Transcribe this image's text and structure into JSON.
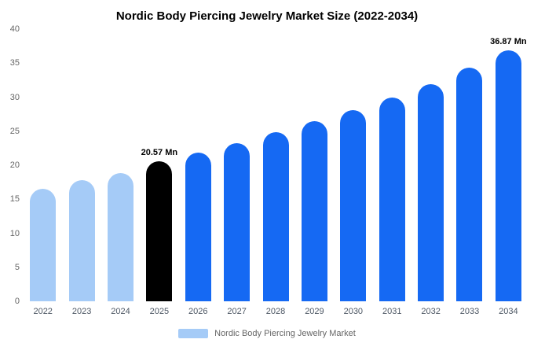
{
  "title": "Nordic Body Piercing Jewelry Market Size (2022-2034)",
  "chart_data": {
    "type": "bar",
    "title": "Nordic Body Piercing Jewelry Market Size (2022-2034)",
    "categories": [
      "2022",
      "2023",
      "2024",
      "2025",
      "2026",
      "2027",
      "2028",
      "2029",
      "2030",
      "2031",
      "2032",
      "2033",
      "2034"
    ],
    "values": [
      16.5,
      17.8,
      18.9,
      20.57,
      21.85,
      23.2,
      24.8,
      26.5,
      28.1,
      30.0,
      31.9,
      34.3,
      36.87
    ],
    "bar_colors": [
      "light",
      "light",
      "light",
      "black",
      "blue",
      "blue",
      "blue",
      "blue",
      "blue",
      "blue",
      "blue",
      "blue",
      "blue"
    ],
    "colors": {
      "light": "#a5cbf7",
      "blue": "#1569f3",
      "black": "#000000"
    },
    "annotations": [
      {
        "index": 3,
        "text": "20.57 Mn"
      },
      {
        "index": 12,
        "text": "36.87 Mn"
      }
    ],
    "xlabel": "",
    "ylabel": "",
    "ylim": [
      0,
      40
    ],
    "yticks": [
      0,
      5,
      10,
      15,
      20,
      25,
      30,
      35,
      40
    ],
    "grid": false,
    "legend": {
      "position": "bottom",
      "items": [
        {
          "label": "Nordic Body Piercing Jewelry Market",
          "color": "#a5cbf7"
        }
      ]
    }
  }
}
